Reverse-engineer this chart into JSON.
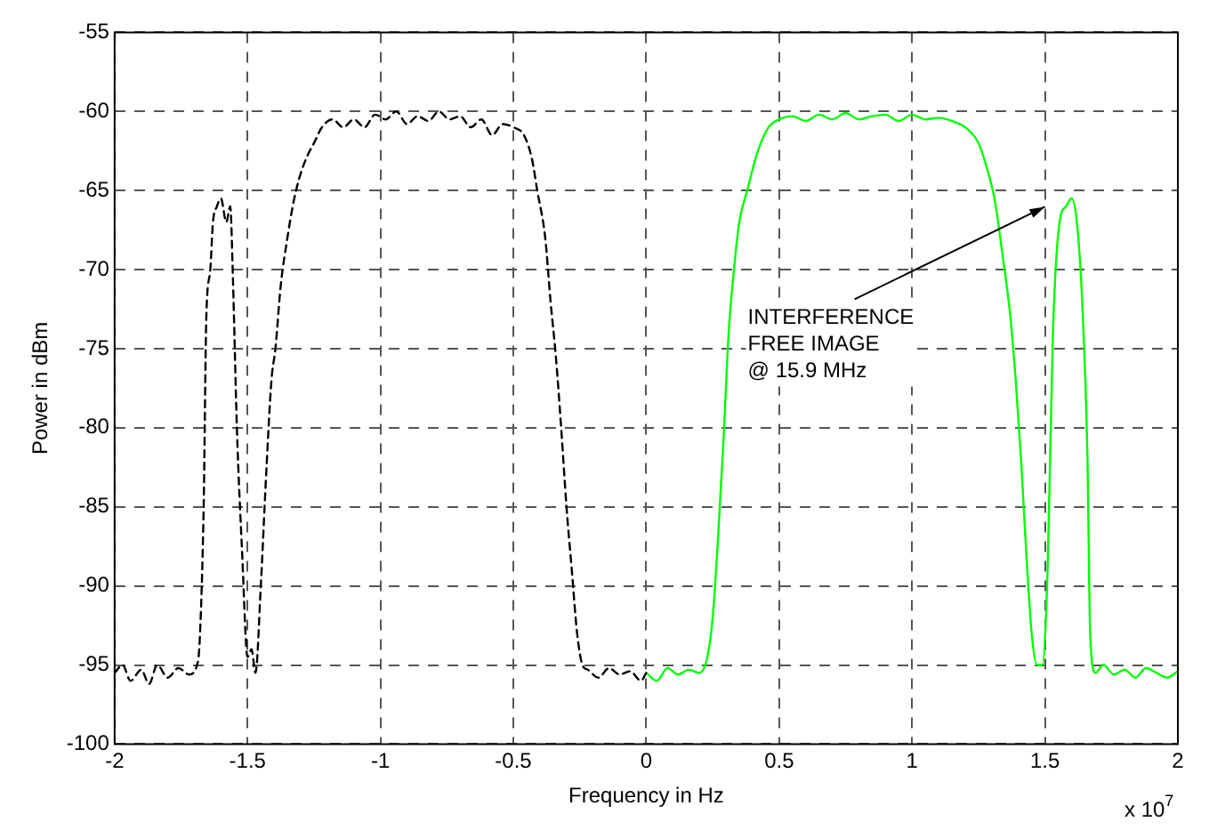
{
  "chart_data": {
    "type": "line",
    "xlabel": "Frequency in Hz",
    "ylabel": "Power in dBm",
    "xlim": [
      -2,
      2
    ],
    "xticks": [
      -2,
      -1.5,
      -1,
      -0.5,
      0,
      0.5,
      1,
      1.5,
      2
    ],
    "ylim": [
      -100,
      -55
    ],
    "yticks": [
      -100,
      -95,
      -90,
      -85,
      -80,
      -75,
      -70,
      -65,
      -60,
      -55
    ],
    "grid": true,
    "marker": "none",
    "annotations": [
      "INTERFERENCE\nFREE IMAGE\n@ 15.9 MHz",
      "x 10$^{7}$"
    ],
    "series": [
      {
        "color": "#000000",
        "line_style": "dashed",
        "x": [
          -2,
          -1.97,
          -1.94,
          -1.9,
          -1.87,
          -1.84,
          -1.8,
          -1.76,
          -1.72,
          -1.69,
          -1.68,
          -1.665,
          -1.655,
          -1.64,
          -1.63,
          -1.615,
          -1.6,
          -1.58,
          -1.565,
          -1.555,
          -1.54,
          -1.52,
          -1.5,
          -1.485,
          -1.47,
          -1.45,
          -1.43,
          -1.41,
          -1.395,
          -1.375,
          -1.35,
          -1.33,
          -1.31,
          -1.28,
          -1.25,
          -1.22,
          -1.18,
          -1.14,
          -1.1,
          -1.06,
          -1.02,
          -0.98,
          -0.94,
          -0.9,
          -0.86,
          -0.82,
          -0.78,
          -0.74,
          -0.7,
          -0.66,
          -0.62,
          -0.58,
          -0.54,
          -0.5,
          -0.46,
          -0.43,
          -0.41,
          -0.38,
          -0.36,
          -0.34,
          -0.32,
          -0.3,
          -0.28,
          -0.26,
          -0.24,
          -0.22,
          -0.18,
          -0.14,
          -0.1,
          -0.06,
          -0.02,
          0
        ],
        "values": [
          -95.5,
          -95,
          -96,
          -95.3,
          -96.2,
          -95,
          -95.8,
          -95.2,
          -95.6,
          -95,
          -93.5,
          -85,
          -73,
          -70,
          -67,
          -66,
          -65.5,
          -67,
          -66,
          -70.5,
          -80,
          -88,
          -94.5,
          -94,
          -95.5,
          -90,
          -83,
          -77,
          -75,
          -71,
          -68,
          -66,
          -64.5,
          -63,
          -62,
          -61,
          -60.5,
          -61,
          -60.5,
          -61,
          -60.2,
          -60.5,
          -60,
          -60.8,
          -60.3,
          -60.6,
          -60,
          -60.5,
          -60.3,
          -61,
          -60.5,
          -61.5,
          -60.8,
          -61,
          -61.5,
          -63,
          -65,
          -68,
          -72,
          -75.5,
          -80,
          -85,
          -89,
          -93,
          -95,
          -95.3,
          -95.8,
          -95.2,
          -95.6,
          -95.4,
          -96,
          -95.5
        ]
      },
      {
        "color": "#00ff00",
        "line_style": "solid",
        "x": [
          0,
          0.04,
          0.08,
          0.12,
          0.16,
          0.2,
          0.23,
          0.25,
          0.27,
          0.29,
          0.31,
          0.33,
          0.35,
          0.38,
          0.42,
          0.46,
          0.5,
          0.55,
          0.6,
          0.65,
          0.7,
          0.75,
          0.8,
          0.85,
          0.9,
          0.95,
          1,
          1.05,
          1.1,
          1.15,
          1.2,
          1.25,
          1.28,
          1.31,
          1.34,
          1.37,
          1.39,
          1.41,
          1.43,
          1.45,
          1.47,
          1.49,
          1.51,
          1.53,
          1.555,
          1.58,
          1.6,
          1.62,
          1.64,
          1.66,
          1.67,
          1.69,
          1.72,
          1.76,
          1.8,
          1.84,
          1.88,
          1.92,
          1.96,
          2
        ],
        "values": [
          -95.5,
          -96,
          -95.2,
          -95.6,
          -95.3,
          -95.5,
          -94.5,
          -92,
          -87,
          -81,
          -74,
          -70,
          -67,
          -65,
          -62.5,
          -61,
          -60.5,
          -60.3,
          -60.6,
          -60.2,
          -60.5,
          -60.1,
          -60.5,
          -60.3,
          -60.2,
          -60.6,
          -60.2,
          -60.5,
          -60.4,
          -60.6,
          -61,
          -62,
          -63.5,
          -65.5,
          -69,
          -73,
          -77,
          -82,
          -88,
          -93,
          -95,
          -95,
          -89,
          -74,
          -67,
          -66,
          -65.5,
          -67,
          -72,
          -82,
          -93,
          -95.5,
          -95,
          -95.6,
          -95.3,
          -95.8,
          -95.2,
          -95.5,
          -95.8,
          -95.4
        ]
      }
    ]
  }
}
